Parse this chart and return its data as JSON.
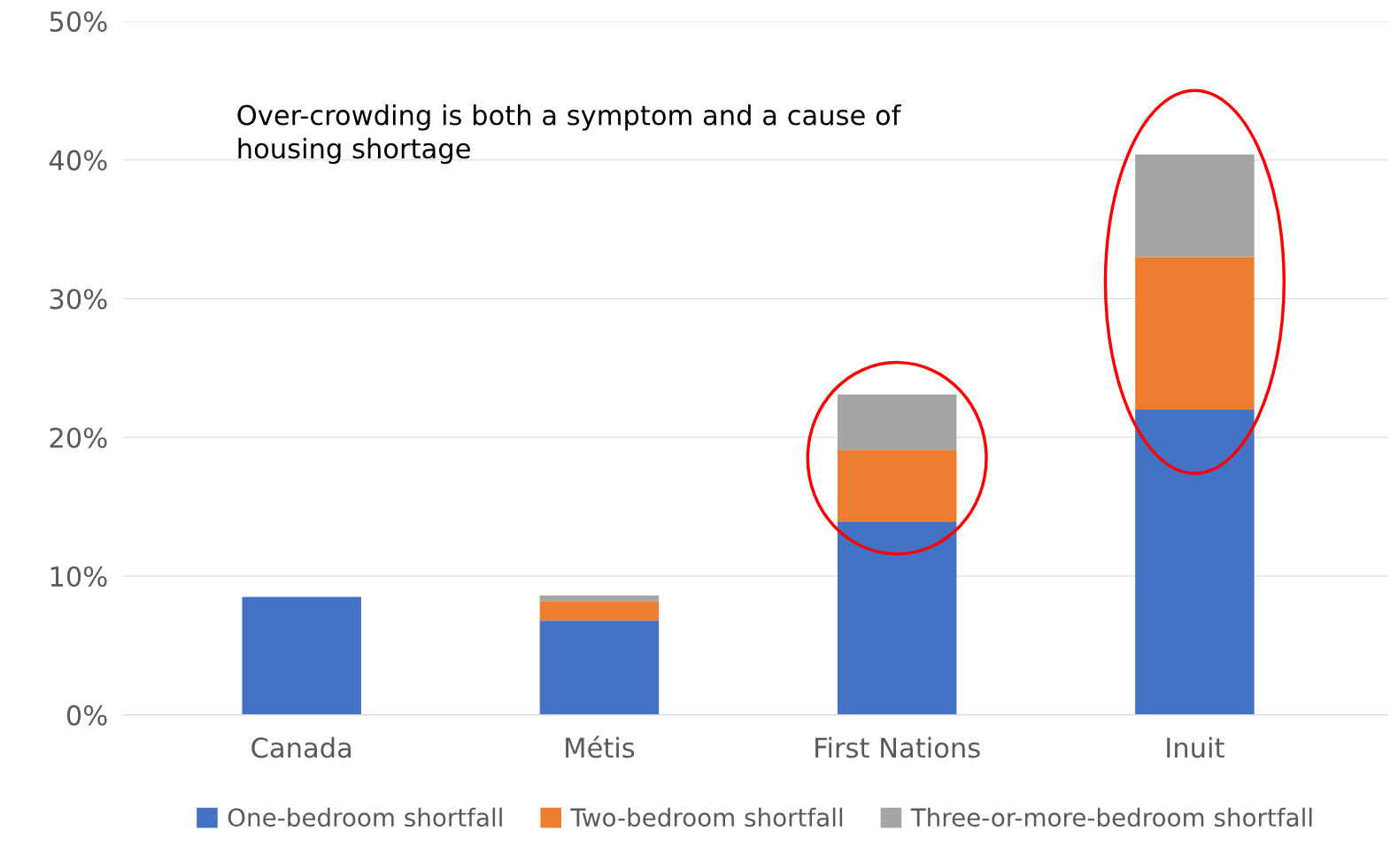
{
  "chart_data": {
    "type": "bar",
    "stacked": true,
    "categories": [
      "Canada",
      "Métis",
      "First Nations",
      "Inuit"
    ],
    "series": [
      {
        "name": "One-bedroom shortfall",
        "color": "#4472c4",
        "values": [
          8.5,
          6.8,
          13.9,
          22.0
        ]
      },
      {
        "name": "Two-bedroom shortfall",
        "color": "#ed7d31",
        "values": [
          0,
          1.4,
          5.2,
          11.0
        ]
      },
      {
        "name": "Three-or-more-bedroom shortfall",
        "color": "#a5a5a5",
        "values": [
          0,
          0.4,
          4.0,
          7.4
        ]
      }
    ],
    "ylim": [
      0,
      50
    ],
    "yticks": [
      {
        "value": 0,
        "label": "0%"
      },
      {
        "value": 10,
        "label": "10%"
      },
      {
        "value": 20,
        "label": "20%"
      },
      {
        "value": 30,
        "label": "30%"
      },
      {
        "value": 40,
        "label": "40%"
      },
      {
        "value": 50,
        "label": "50%"
      }
    ],
    "grid": "y",
    "legend": "bottom",
    "annotations": [
      "Over-crowding is both a symptom and a cause of\nhousing shortage"
    ]
  }
}
